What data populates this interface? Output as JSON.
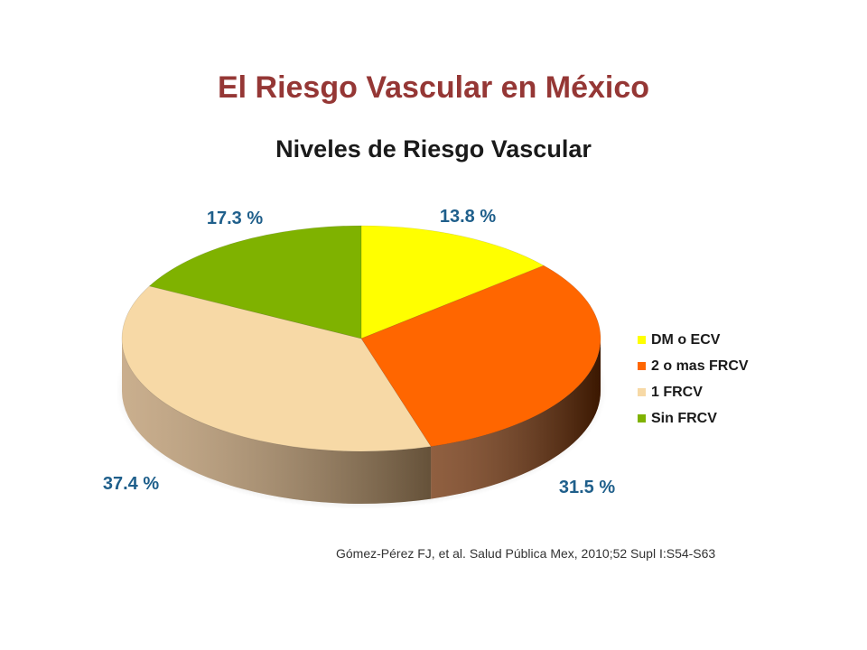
{
  "slide": {
    "title": "El Riesgo Vascular en México",
    "source": "Gómez-Pérez FJ, et al. Salud Pública Mex, 2010;52 Supl I:S54-S63"
  },
  "chart_data": {
    "type": "pie",
    "title": "Niveles de Riesgo Vascular",
    "categories": [
      "DM o ECV",
      "2 o mas FRCV",
      "1 FRCV",
      "Sin FRCV"
    ],
    "values": [
      13.8,
      31.5,
      37.4,
      17.3
    ],
    "value_labels": [
      "13.8 %",
      "31.5 %",
      "37.4 %",
      "17.3 %"
    ],
    "colors": [
      "#ffff00",
      "#ff6600",
      "#f7d9a6",
      "#7fb200"
    ],
    "side_colors": [
      "#c8c800",
      "#6b2a00",
      "#b89468",
      "#4f7000"
    ],
    "label_color": "#1f5f8b",
    "legend_position": "right",
    "style": "3d"
  }
}
